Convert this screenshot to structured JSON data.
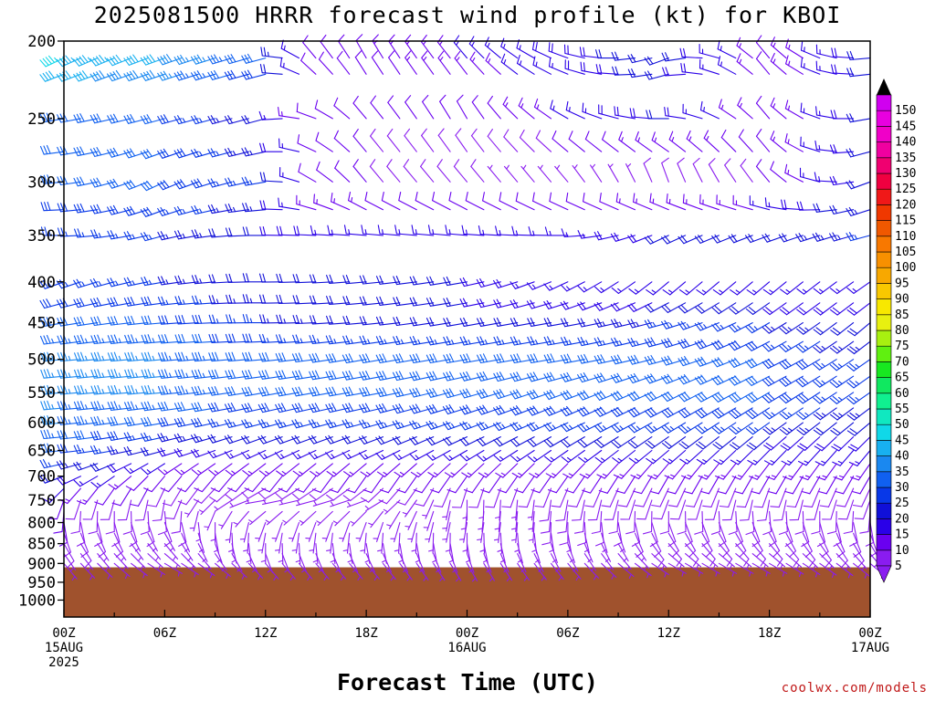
{
  "chart_data": {
    "type": "wind_barb_profile",
    "title": "2025081500 HRRR forecast wind profile (kt) for KBOI",
    "xlabel": "Forecast Time (UTC)",
    "credit": "coolwx.com/models",
    "y_axis": {
      "label": "",
      "scale": "log",
      "ylim": [
        1050,
        200
      ],
      "ticks": [
        200,
        250,
        300,
        350,
        400,
        450,
        500,
        550,
        600,
        650,
        700,
        750,
        800,
        850,
        900,
        950,
        1000
      ]
    },
    "x_axis": {
      "range_hours": [
        0,
        48
      ],
      "ticks": [
        {
          "h": 0,
          "line1": "00Z",
          "line2": "15AUG",
          "line3": "2025"
        },
        {
          "h": 6,
          "line1": "06Z",
          "line2": "",
          "line3": ""
        },
        {
          "h": 12,
          "line1": "12Z",
          "line2": "",
          "line3": ""
        },
        {
          "h": 18,
          "line1": "18Z",
          "line2": "",
          "line3": ""
        },
        {
          "h": 24,
          "line1": "00Z",
          "line2": "16AUG",
          "line3": ""
        },
        {
          "h": 30,
          "line1": "06Z",
          "line2": "",
          "line3": ""
        },
        {
          "h": 36,
          "line1": "12Z",
          "line2": "",
          "line3": ""
        },
        {
          "h": 42,
          "line1": "18Z",
          "line2": "",
          "line3": ""
        },
        {
          "h": 48,
          "line1": "00Z",
          "line2": "17AUG",
          "line3": ""
        }
      ]
    },
    "surface_pressure_hpa": 910,
    "ground_color": "#a0522d",
    "colorbar": {
      "unit": "kt",
      "levels": [
        5,
        10,
        15,
        20,
        25,
        30,
        35,
        40,
        45,
        50,
        55,
        60,
        65,
        70,
        75,
        80,
        85,
        90,
        95,
        100,
        105,
        110,
        115,
        120,
        125,
        130,
        135,
        140,
        145,
        150
      ],
      "colors": [
        "#8a1cf0",
        "#6a00f0",
        "#2a00e8",
        "#1010d8",
        "#0838e8",
        "#1060f0",
        "#1a88f0",
        "#18b0f0",
        "#10d8e8",
        "#10e8c0",
        "#10f090",
        "#10e860",
        "#18e820",
        "#60f010",
        "#a8f010",
        "#e8f010",
        "#f8e800",
        "#f8c800",
        "#f8a800",
        "#f89000",
        "#f87800",
        "#f05800",
        "#f03800",
        "#f01818",
        "#f00040",
        "#f00070",
        "#f000a0",
        "#f000c8",
        "#e800e0",
        "#d000f0"
      ],
      "over_color": "#000000",
      "under_color": "#8a1cf0"
    },
    "wind_profile": {
      "hours_step": 1,
      "levels_hpa": [
        210,
        220,
        250,
        275,
        300,
        325,
        350,
        400,
        425,
        450,
        475,
        500,
        525,
        550,
        575,
        600,
        625,
        650,
        675,
        700,
        725,
        750,
        775,
        800,
        825,
        850,
        875,
        900
      ],
      "keypoints": [
        {
          "p": 210,
          "h": [
            0,
            6,
            12,
            15,
            18,
            24,
            30,
            36,
            42,
            48
          ],
          "dir": [
            245,
            250,
            255,
            320,
            330,
            320,
            290,
            250,
            320,
            265
          ],
          "spd": [
            45,
            40,
            30,
            10,
            12,
            15,
            18,
            22,
            12,
            20
          ]
        },
        {
          "p": 250,
          "h": [
            0,
            6,
            12,
            15,
            18,
            24,
            30,
            36,
            42,
            48
          ],
          "dir": [
            260,
            255,
            255,
            290,
            320,
            330,
            300,
            270,
            320,
            260
          ],
          "spd": [
            30,
            30,
            20,
            12,
            10,
            10,
            15,
            20,
            12,
            20
          ]
        },
        {
          "p": 300,
          "h": [
            0,
            6,
            12,
            15,
            18,
            24,
            30,
            36,
            42,
            48
          ],
          "dir": [
            265,
            245,
            260,
            300,
            320,
            320,
            320,
            340,
            320,
            250
          ],
          "spd": [
            30,
            30,
            25,
            12,
            10,
            8,
            5,
            8,
            10,
            20
          ]
        },
        {
          "p": 350,
          "h": [
            0,
            6,
            12,
            18,
            24,
            30,
            36,
            42,
            48
          ],
          "dir": [
            270,
            255,
            270,
            275,
            275,
            270,
            245,
            250,
            255
          ],
          "spd": [
            25,
            25,
            20,
            15,
            15,
            15,
            20,
            20,
            25
          ]
        },
        {
          "p": 400,
          "h": [
            0,
            6,
            12,
            18,
            24,
            30,
            36,
            42,
            48
          ],
          "dir": [
            250,
            260,
            270,
            265,
            260,
            245,
            230,
            230,
            235
          ],
          "spd": [
            25,
            25,
            20,
            20,
            20,
            15,
            15,
            15,
            15
          ]
        },
        {
          "p": 450,
          "h": [
            0,
            6,
            12,
            18,
            24,
            30,
            36,
            42,
            48
          ],
          "dir": [
            260,
            265,
            270,
            265,
            260,
            260,
            255,
            240,
            230
          ],
          "spd": [
            30,
            30,
            25,
            20,
            20,
            20,
            25,
            25,
            20
          ]
        },
        {
          "p": 500,
          "h": [
            0,
            6,
            12,
            18,
            24,
            30,
            36,
            42,
            48
          ],
          "dir": [
            265,
            265,
            265,
            260,
            260,
            260,
            255,
            245,
            235
          ],
          "spd": [
            35,
            35,
            30,
            30,
            30,
            30,
            30,
            30,
            25
          ]
        },
        {
          "p": 550,
          "h": [
            0,
            6,
            12,
            18,
            24,
            30,
            36,
            42,
            48
          ],
          "dir": [
            265,
            265,
            260,
            260,
            255,
            250,
            245,
            240,
            235
          ],
          "spd": [
            35,
            35,
            30,
            30,
            30,
            30,
            30,
            30,
            25
          ]
        },
        {
          "p": 600,
          "h": [
            0,
            6,
            12,
            18,
            24,
            30,
            36,
            42,
            48
          ],
          "dir": [
            265,
            260,
            255,
            255,
            250,
            245,
            240,
            235,
            230
          ],
          "spd": [
            35,
            30,
            25,
            25,
            25,
            25,
            25,
            25,
            20
          ]
        },
        {
          "p": 650,
          "h": [
            0,
            6,
            12,
            18,
            24,
            30,
            36,
            42,
            48
          ],
          "dir": [
            265,
            255,
            245,
            245,
            240,
            235,
            230,
            225,
            220
          ],
          "spd": [
            30,
            20,
            15,
            15,
            15,
            15,
            15,
            15,
            15
          ]
        },
        {
          "p": 700,
          "h": [
            0,
            6,
            12,
            18,
            24,
            30,
            36,
            42,
            48
          ],
          "dir": [
            250,
            220,
            220,
            215,
            215,
            215,
            210,
            210,
            210
          ],
          "spd": [
            20,
            10,
            10,
            10,
            10,
            10,
            10,
            10,
            10
          ]
        },
        {
          "p": 750,
          "h": [
            0,
            6,
            12,
            18,
            24,
            30,
            36,
            42,
            48
          ],
          "dir": [
            200,
            190,
            260,
            250,
            180,
            190,
            200,
            190,
            200
          ],
          "spd": [
            10,
            8,
            5,
            5,
            5,
            8,
            8,
            8,
            8
          ]
        },
        {
          "p": 800,
          "h": [
            0,
            6,
            12,
            18,
            24,
            30,
            36,
            42,
            48
          ],
          "dir": [
            170,
            160,
            200,
            200,
            190,
            180,
            160,
            160,
            170
          ],
          "spd": [
            10,
            8,
            5,
            5,
            5,
            8,
            8,
            8,
            8
          ]
        },
        {
          "p": 850,
          "h": [
            0,
            6,
            12,
            18,
            24,
            30,
            36,
            42,
            48
          ],
          "dir": [
            150,
            140,
            180,
            170,
            170,
            160,
            140,
            140,
            150
          ],
          "spd": [
            8,
            5,
            5,
            5,
            5,
            5,
            8,
            8,
            8
          ]
        },
        {
          "p": 900,
          "h": [
            0,
            6,
            12,
            18,
            24,
            30,
            36,
            42,
            48
          ],
          "dir": [
            140,
            120,
            140,
            140,
            150,
            140,
            120,
            120,
            130
          ],
          "spd": [
            5,
            5,
            5,
            5,
            5,
            5,
            5,
            5,
            5
          ]
        }
      ]
    },
    "grid": false,
    "legend": "right colorbar"
  }
}
